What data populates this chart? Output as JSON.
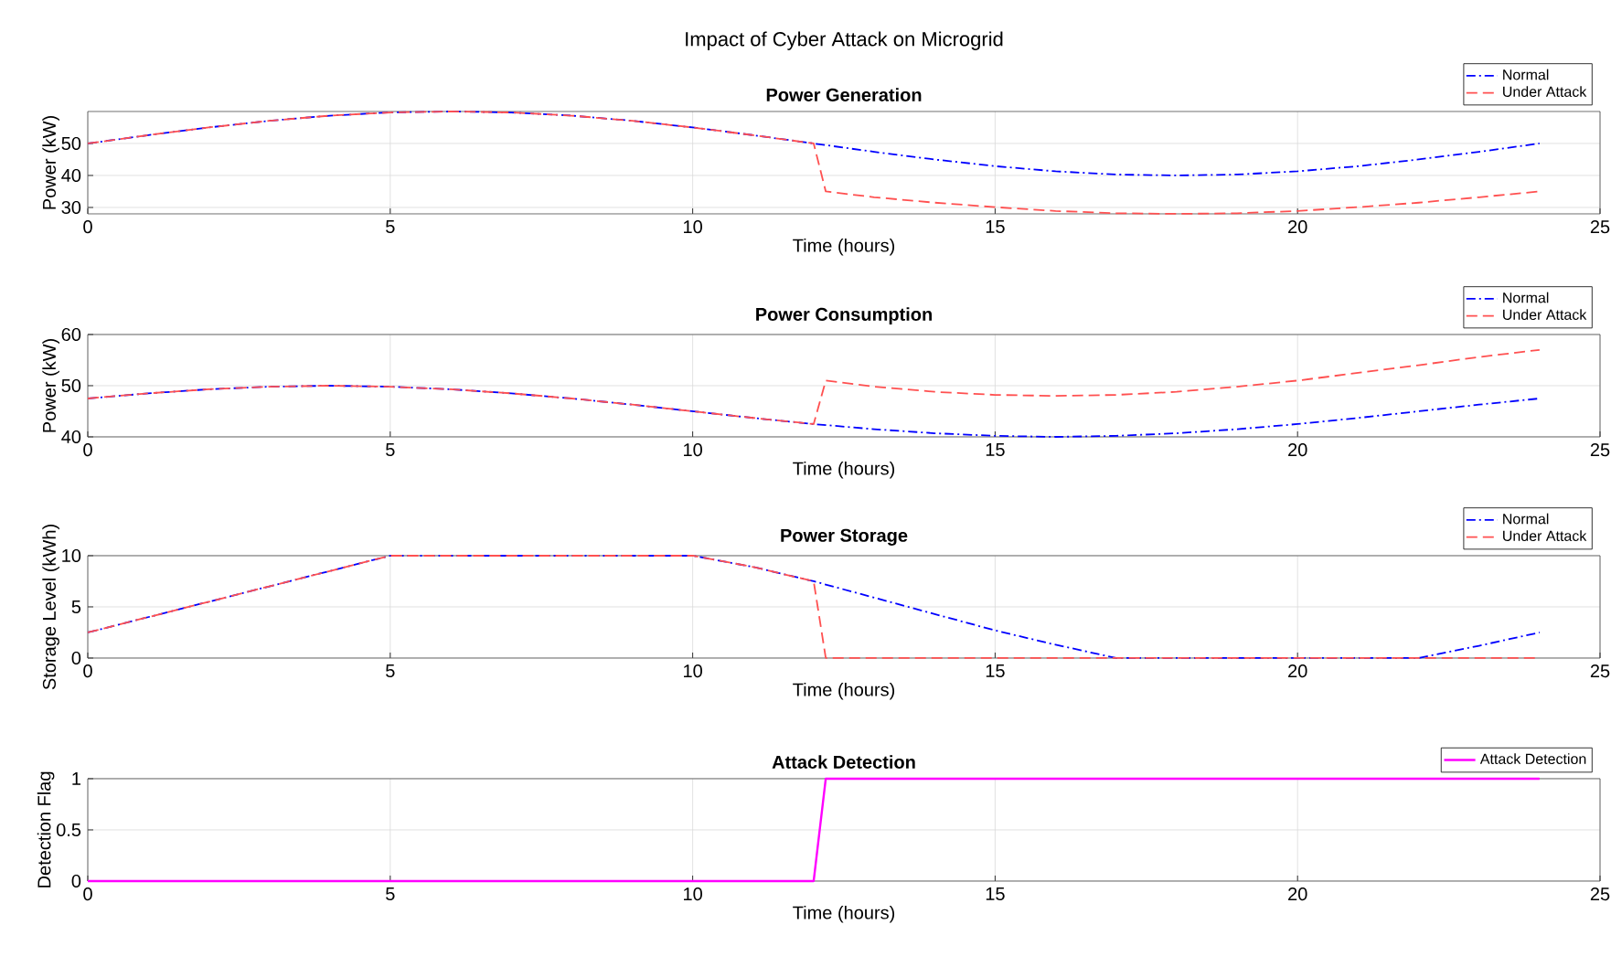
{
  "chart_data": [
    {
      "type": "line",
      "title": "Power Generation",
      "annotations": [
        "Impact of Cyber Attack on Microgrid"
      ],
      "xlabel": "Time (hours)",
      "ylabel": "Power (kW)",
      "xlim": [
        0,
        25
      ],
      "xticks": [
        0,
        5,
        10,
        15,
        20,
        25
      ],
      "ylim": [
        28,
        60
      ],
      "yticks": [
        30,
        40,
        50
      ],
      "grid": true,
      "legend": "top right",
      "series": [
        {
          "name": "Normal",
          "color": "#0000ff",
          "line_style": "dashdot",
          "x": [
            0,
            1,
            2,
            3,
            4,
            5,
            6,
            7,
            8,
            9,
            10,
            11,
            12,
            13,
            14,
            15,
            16,
            17,
            18,
            19,
            20,
            21,
            22,
            23,
            24
          ],
          "values": [
            50,
            52.6,
            55,
            57.1,
            58.7,
            59.7,
            60,
            59.7,
            58.7,
            57.1,
            55,
            52.6,
            50,
            47.4,
            45,
            42.9,
            41.3,
            40.3,
            40,
            40.3,
            41.3,
            42.9,
            45,
            47.4,
            50
          ]
        },
        {
          "name": "Under Attack",
          "color": "#ff5050",
          "line_style": "dashed",
          "x": [
            0,
            1,
            2,
            3,
            4,
            5,
            6,
            7,
            8,
            9,
            10,
            11,
            12,
            12.2,
            13,
            14,
            15,
            16,
            17,
            18,
            19,
            20,
            21,
            22,
            23,
            24
          ],
          "values": [
            50,
            52.6,
            55,
            57.1,
            58.7,
            59.7,
            60,
            59.7,
            58.7,
            57.1,
            55,
            52.6,
            50,
            35,
            33.2,
            31.5,
            30.1,
            28.9,
            28.2,
            28,
            28.2,
            28.9,
            30.1,
            31.5,
            33.2,
            35
          ]
        }
      ]
    },
    {
      "type": "line",
      "title": "Power Consumption",
      "xlabel": "Time (hours)",
      "ylabel": "Power (kW)",
      "xlim": [
        0,
        25
      ],
      "xticks": [
        0,
        5,
        10,
        15,
        20,
        25
      ],
      "ylim": [
        40,
        60
      ],
      "yticks": [
        40,
        50,
        60
      ],
      "grid": true,
      "legend": "top right",
      "series": [
        {
          "name": "Normal",
          "color": "#0000ff",
          "line_style": "dashdot",
          "x": [
            0,
            1,
            2,
            3,
            4,
            5,
            6,
            7,
            8,
            9,
            10,
            11,
            12,
            13,
            14,
            15,
            16,
            17,
            18,
            19,
            20,
            21,
            22,
            23,
            24
          ],
          "values": [
            47.5,
            48.5,
            49.3,
            49.8,
            50,
            49.8,
            49.3,
            48.5,
            47.5,
            46.3,
            45,
            43.7,
            42.5,
            41.5,
            40.7,
            40.2,
            40,
            40.2,
            40.7,
            41.5,
            42.5,
            43.7,
            45,
            46.3,
            47.5
          ]
        },
        {
          "name": "Under Attack",
          "color": "#ff5050",
          "line_style": "dashed",
          "x": [
            0,
            1,
            2,
            3,
            4,
            5,
            6,
            7,
            8,
            9,
            10,
            11,
            12,
            12.2,
            13,
            14,
            15,
            16,
            17,
            18,
            19,
            20,
            21,
            22,
            23,
            24
          ],
          "values": [
            47.5,
            48.5,
            49.3,
            49.8,
            50,
            49.8,
            49.3,
            48.5,
            47.5,
            46.3,
            45,
            43.7,
            42.5,
            51,
            49.8,
            48.8,
            48.2,
            48,
            48.2,
            48.8,
            49.8,
            51,
            52.5,
            54,
            55.6,
            57
          ]
        }
      ]
    },
    {
      "type": "line",
      "title": "Power Storage",
      "xlabel": "Time (hours)",
      "ylabel": "Storage Level (kWh)",
      "xlim": [
        0,
        25
      ],
      "xticks": [
        0,
        5,
        10,
        15,
        20,
        25
      ],
      "ylim": [
        0,
        10
      ],
      "yticks": [
        0,
        5,
        10
      ],
      "grid": true,
      "legend": "top right",
      "series": [
        {
          "name": "Normal",
          "color": "#0000ff",
          "line_style": "dashdot",
          "x": [
            0,
            5,
            10,
            11,
            12,
            13,
            14,
            15,
            16,
            17,
            22,
            23,
            24
          ],
          "values": [
            2.5,
            10,
            10,
            8.9,
            7.5,
            5.9,
            4.3,
            2.7,
            1.3,
            0,
            0,
            1.2,
            2.5
          ]
        },
        {
          "name": "Under Attack",
          "color": "#ff5050",
          "line_style": "dashed",
          "x": [
            0,
            5,
            10,
            11,
            12,
            12.2,
            24
          ],
          "values": [
            2.5,
            10,
            10,
            8.9,
            7.5,
            0,
            0
          ]
        }
      ]
    },
    {
      "type": "line",
      "title": "Attack Detection",
      "xlabel": "Time (hours)",
      "ylabel": "Detection Flag",
      "xlim": [
        0,
        25
      ],
      "xticks": [
        0,
        5,
        10,
        15,
        20,
        25
      ],
      "ylim": [
        0,
        1
      ],
      "yticks": [
        0,
        0.5,
        1
      ],
      "grid": true,
      "legend": "top right",
      "series": [
        {
          "name": "Attack Detection",
          "color": "#ff00ff",
          "line_style": "solid",
          "x": [
            0,
            12,
            12.2,
            24
          ],
          "values": [
            0,
            0,
            1,
            1
          ]
        }
      ]
    }
  ]
}
